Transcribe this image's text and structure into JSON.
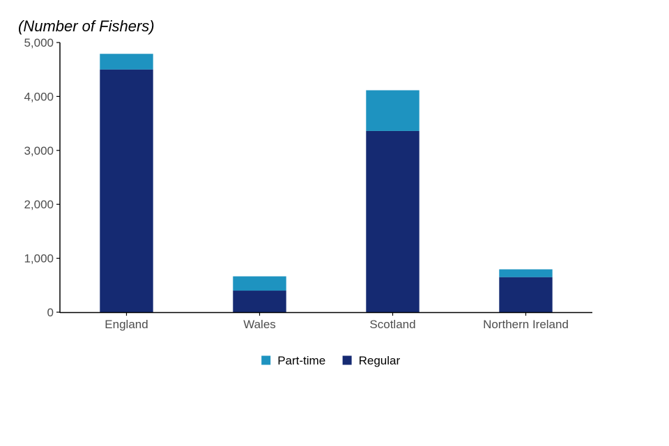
{
  "chart_data": {
    "type": "bar",
    "stacked": true,
    "ylabel": "(Number of Fishers)",
    "ylim": [
      0,
      5000
    ],
    "yticks": [
      0,
      1000,
      2000,
      3000,
      4000,
      5000
    ],
    "ytick_labels": [
      "0",
      "1,000",
      "2,000",
      "3,000",
      "4,000",
      "5,000"
    ],
    "categories": [
      "England",
      "Wales",
      "Scotland",
      "Northern Ireland"
    ],
    "series": [
      {
        "name": "Regular",
        "color": "#152a72",
        "values": [
          4500,
          400,
          3360,
          650
        ]
      },
      {
        "name": "Part-time",
        "color": "#1e93c0",
        "values": [
          290,
          265,
          755,
          145
        ]
      }
    ],
    "legend": {
      "position": "bottom",
      "order": [
        "Part-time",
        "Regular"
      ]
    },
    "grid": false
  }
}
